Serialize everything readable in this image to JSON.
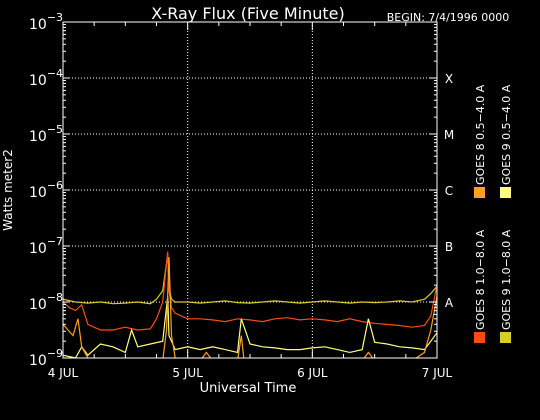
{
  "chart_data": {
    "type": "line",
    "title": "X-Ray Flux (Five Minute)",
    "begin_label": "BEGIN: 7/4/1996 0000",
    "xlabel": "Universal Time",
    "ylabel": "Watts meter2",
    "x_ticks": [
      {
        "value": 0,
        "label": "4 JUL"
      },
      {
        "value": 1,
        "label": "5 JUL"
      },
      {
        "value": 2,
        "label": "6 JUL"
      },
      {
        "value": 3,
        "label": "7 JUL"
      }
    ],
    "xlim": [
      0,
      3
    ],
    "y_scale": "log",
    "ylim_exp": [
      -9,
      -3
    ],
    "y_ticks": [
      {
        "exp": -3,
        "label": "10",
        "sup": "−3"
      },
      {
        "exp": -4,
        "label": "10",
        "sup": "−4"
      },
      {
        "exp": -5,
        "label": "10",
        "sup": "−5"
      },
      {
        "exp": -6,
        "label": "10",
        "sup": "−6"
      },
      {
        "exp": -7,
        "label": "10",
        "sup": "−7"
      },
      {
        "exp": -8,
        "label": "10",
        "sup": "−8"
      },
      {
        "exp": -9,
        "label": "10",
        "sup": "−9"
      }
    ],
    "flare_classes": [
      {
        "label": "X",
        "exp": -4
      },
      {
        "label": "M",
        "exp": -5
      },
      {
        "label": "C",
        "exp": -6
      },
      {
        "label": "B",
        "exp": -7
      },
      {
        "label": "A",
        "exp": -8
      }
    ],
    "grid": true,
    "legend": [
      {
        "name": "GOES 8 1.0−8.0 A",
        "color": "#ff4a12"
      },
      {
        "name": "GOES 8 0.5−4.0 A",
        "color": "#ffa020"
      },
      {
        "name": "GOES 9 1.0−8.0 A",
        "color": "#d8cc2a"
      },
      {
        "name": "GOES 9 0.5−4.0 A",
        "color": "#ffff80"
      }
    ],
    "series": [
      {
        "name": "GOES 9 1.0−8.0 A",
        "color": "#d8cc2a",
        "x": [
          0.0,
          0.1,
          0.2,
          0.3,
          0.4,
          0.5,
          0.6,
          0.7,
          0.75,
          0.8,
          0.84,
          0.85,
          0.87,
          0.9,
          1.0,
          1.1,
          1.2,
          1.3,
          1.4,
          1.5,
          1.6,
          1.7,
          1.8,
          1.9,
          2.0,
          2.1,
          2.2,
          2.3,
          2.4,
          2.5,
          2.6,
          2.7,
          2.8,
          2.9,
          2.95,
          3.0
        ],
        "log_y": [
          -7.95,
          -8.0,
          -8.02,
          -8.0,
          -8.03,
          -8.02,
          -8.0,
          -8.03,
          -7.95,
          -7.8,
          -7.15,
          -7.75,
          -7.95,
          -8.0,
          -8.0,
          -8.02,
          -8.0,
          -7.98,
          -8.01,
          -8.02,
          -8.0,
          -7.98,
          -8.0,
          -8.02,
          -8.0,
          -7.98,
          -8.0,
          -8.02,
          -8.0,
          -8.01,
          -8.0,
          -7.98,
          -8.0,
          -7.95,
          -7.85,
          -7.72
        ]
      },
      {
        "name": "GOES 8 1.0−8.0 A",
        "color": "#ff4a12",
        "x": [
          0.0,
          0.05,
          0.1,
          0.15,
          0.2,
          0.3,
          0.4,
          0.5,
          0.6,
          0.7,
          0.75,
          0.8,
          0.84,
          0.85,
          0.87,
          0.9,
          1.0,
          1.1,
          1.2,
          1.3,
          1.4,
          1.5,
          1.6,
          1.7,
          1.8,
          1.9,
          2.0,
          2.1,
          2.2,
          2.3,
          2.4,
          2.5,
          2.6,
          2.7,
          2.8,
          2.9,
          2.95,
          3.0
        ],
        "log_y": [
          -8.0,
          -8.1,
          -8.15,
          -8.05,
          -8.4,
          -8.5,
          -8.5,
          -8.45,
          -8.5,
          -8.48,
          -8.3,
          -8.0,
          -7.1,
          -7.8,
          -8.1,
          -8.2,
          -8.3,
          -8.3,
          -8.32,
          -8.35,
          -8.3,
          -8.32,
          -8.35,
          -8.3,
          -8.28,
          -8.32,
          -8.3,
          -8.32,
          -8.35,
          -8.3,
          -8.35,
          -8.38,
          -8.4,
          -8.42,
          -8.45,
          -8.42,
          -8.25,
          -7.7
        ]
      },
      {
        "name": "GOES 9 0.5−4.0 A",
        "color": "#ffff80",
        "x": [
          0.0,
          0.1,
          0.15,
          0.2,
          0.3,
          0.4,
          0.5,
          0.55,
          0.6,
          0.7,
          0.8,
          0.84,
          0.85,
          0.9,
          1.0,
          1.1,
          1.2,
          1.3,
          1.4,
          1.43,
          1.5,
          1.6,
          1.7,
          1.8,
          1.9,
          2.0,
          2.1,
          2.2,
          2.3,
          2.4,
          2.45,
          2.5,
          2.6,
          2.7,
          2.8,
          2.9,
          2.95,
          3.0
        ],
        "log_y": [
          -8.95,
          -9.0,
          -8.8,
          -8.95,
          -8.75,
          -8.8,
          -8.9,
          -8.5,
          -8.8,
          -8.75,
          -8.7,
          -7.9,
          -8.6,
          -8.85,
          -8.8,
          -8.85,
          -8.8,
          -8.85,
          -8.9,
          -8.3,
          -8.75,
          -8.8,
          -8.82,
          -8.85,
          -8.85,
          -8.82,
          -8.8,
          -8.85,
          -8.9,
          -8.85,
          -8.3,
          -8.72,
          -8.75,
          -8.8,
          -8.82,
          -8.85,
          -8.7,
          -8.55
        ]
      },
      {
        "name": "GOES 8 0.5−4.0 A",
        "color": "#ffa020",
        "x": [
          0.0,
          0.08,
          0.12,
          0.15,
          0.2,
          0.25,
          0.3,
          0.4,
          0.5,
          0.6,
          0.7,
          0.8,
          0.83,
          0.85,
          0.87,
          0.9,
          1.0,
          1.1,
          1.15,
          1.2,
          1.3,
          1.4,
          1.43,
          1.45,
          1.5,
          1.6,
          1.8,
          2.0,
          2.2,
          2.4,
          2.45,
          2.5,
          2.6,
          2.7,
          2.8,
          2.9,
          2.95,
          3.0
        ],
        "log_y": [
          -8.4,
          -8.6,
          -8.3,
          -8.8,
          -9.0,
          -9.1,
          -9.2,
          -9.2,
          -9.1,
          -9.2,
          -9.2,
          -9.2,
          -8.5,
          -7.2,
          -8.6,
          -9.0,
          -9.2,
          -9.2,
          -8.9,
          -9.2,
          -9.2,
          -9.1,
          -8.6,
          -9.0,
          -9.2,
          -9.2,
          -9.2,
          -9.2,
          -9.2,
          -9.2,
          -8.9,
          -9.2,
          -9.2,
          -9.2,
          -9.1,
          -8.9,
          -8.5,
          -7.9
        ]
      }
    ]
  }
}
